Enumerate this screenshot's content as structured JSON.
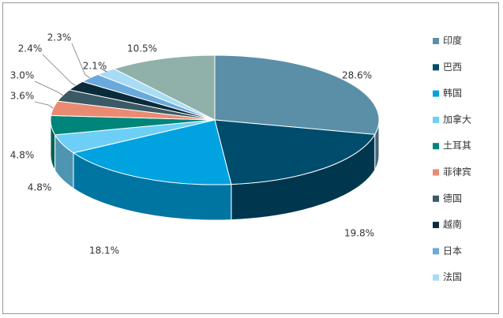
{
  "chart_data": {
    "type": "pie",
    "categories": [
      "印度",
      "巴西",
      "韩国",
      "加拿大",
      "土耳其",
      "菲律宾",
      "德国",
      "越南",
      "日本",
      "法国",
      null
    ],
    "values": [
      28.6,
      19.8,
      18.1,
      4.8,
      4.8,
      3.6,
      3.0,
      2.4,
      2.3,
      2.1,
      10.5
    ],
    "value_labels": [
      "28.6%",
      "19.8%",
      "18.1%",
      "4.8%",
      "4.8%",
      "3.6%",
      "3.0%",
      "2.4%",
      "2.3%",
      "2.1%",
      "10.5%"
    ],
    "colors": [
      "#5b8fa8",
      "#004c6d",
      "#00a2e0",
      "#6dcff6",
      "#00857a",
      "#e98b72",
      "#3c5a66",
      "#0a2b3a",
      "#6aa9dc",
      "#a8dcf6",
      "#8fb1aa"
    ],
    "legend": "right"
  }
}
